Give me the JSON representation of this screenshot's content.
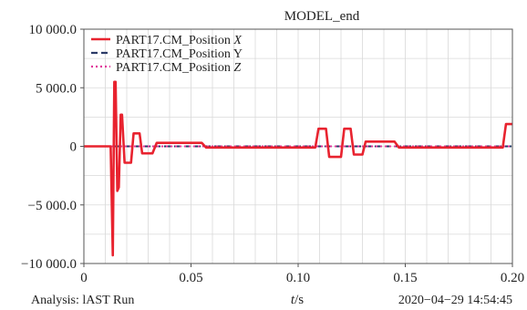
{
  "chart_data": {
    "type": "line",
    "title": "MODEL_end",
    "xlabel": "t/s",
    "ylabel": "",
    "xlim": [
      0,
      0.2
    ],
    "ylim": [
      -10000,
      10000
    ],
    "x_ticks": [
      {
        "value": 0,
        "label": "0"
      },
      {
        "value": 0.05,
        "label": "0.05"
      },
      {
        "value": 0.1,
        "label": "0.10"
      },
      {
        "value": 0.15,
        "label": "0.15"
      },
      {
        "value": 0.2,
        "label": "0.20"
      }
    ],
    "y_ticks": [
      {
        "value": 10000,
        "label": "10 000.0"
      },
      {
        "value": 5000,
        "label": "5 000.0"
      },
      {
        "value": 0,
        "label": "0"
      },
      {
        "value": -5000,
        "label": "−5 000.0"
      },
      {
        "value": -10000,
        "label": "−10 000.0"
      }
    ],
    "grid": true,
    "legend_position": "top-left",
    "series": [
      {
        "name": "PART17.CM_Position X",
        "color": "#e8232f",
        "style": "solid",
        "points": [
          [
            0,
            0
          ],
          [
            0.0125,
            0
          ],
          [
            0.0135,
            -9300
          ],
          [
            0.0142,
            5500
          ],
          [
            0.0148,
            5500
          ],
          [
            0.0156,
            -3800
          ],
          [
            0.0163,
            -3500
          ],
          [
            0.0172,
            2700
          ],
          [
            0.0178,
            2700
          ],
          [
            0.019,
            -1400
          ],
          [
            0.022,
            -1400
          ],
          [
            0.0232,
            1100
          ],
          [
            0.026,
            1100
          ],
          [
            0.0272,
            -600
          ],
          [
            0.032,
            -600
          ],
          [
            0.034,
            300
          ],
          [
            0.055,
            300
          ],
          [
            0.057,
            -100
          ],
          [
            0.108,
            -100
          ],
          [
            0.1095,
            1500
          ],
          [
            0.113,
            1500
          ],
          [
            0.1145,
            -900
          ],
          [
            0.12,
            -900
          ],
          [
            0.1215,
            1500
          ],
          [
            0.1245,
            1500
          ],
          [
            0.126,
            -700
          ],
          [
            0.13,
            -700
          ],
          [
            0.1315,
            400
          ],
          [
            0.145,
            400
          ],
          [
            0.147,
            -100
          ],
          [
            0.1955,
            -100
          ],
          [
            0.197,
            1900
          ],
          [
            0.2,
            1900
          ]
        ]
      },
      {
        "name": "PART17.CM_Position Y",
        "color": "#2b3a67",
        "style": "dashed",
        "points": [
          [
            0,
            0
          ],
          [
            0.2,
            0
          ]
        ]
      },
      {
        "name": "PART17.CM_Position Z",
        "color": "#e0359a",
        "style": "dotted",
        "points": [
          [
            0,
            0
          ],
          [
            0.2,
            0
          ]
        ]
      }
    ],
    "footer_left": "Analysis: lAST  Run",
    "footer_right": "2020−04−29 14:54:45"
  }
}
